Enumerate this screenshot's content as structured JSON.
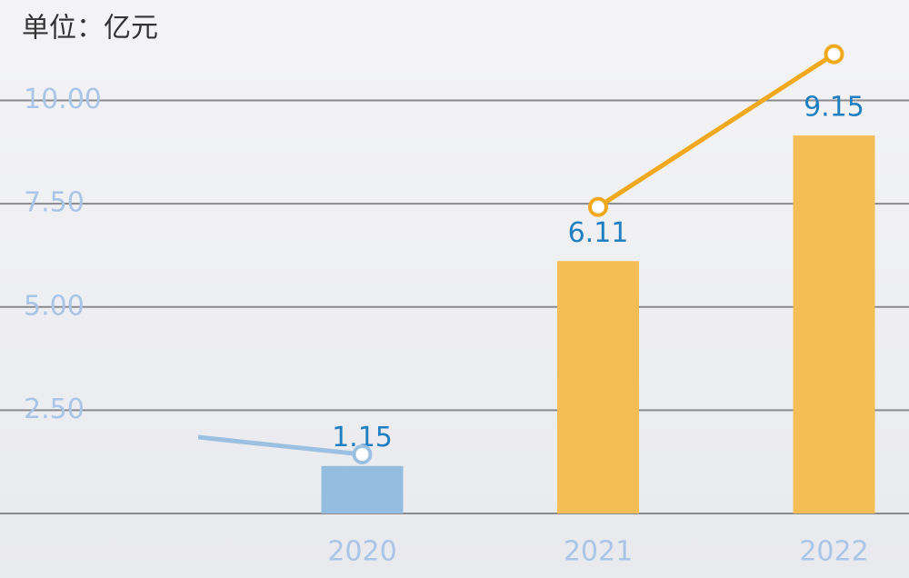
{
  "chart_data": {
    "type": "bar",
    "title": "单位：亿元",
    "categories": [
      null,
      "2020",
      "2021",
      "2022"
    ],
    "values": [
      null,
      1.15,
      6.11,
      9.15
    ],
    "colors": [
      "#95bde0",
      "#95bde0",
      "#f5bd55",
      "#f5bd55"
    ],
    "series": [
      {
        "values": [
          2.03,
          1.43,
          null,
          null
        ],
        "color": "#9cc0e2"
      },
      {
        "values": [
          null,
          null,
          7.42,
          11.12
        ],
        "color": "#f0a81c"
      }
    ],
    "ylim": [
      0,
      12.3
    ],
    "yticks": [
      {
        "value": 2.5,
        "label": "2.50"
      },
      {
        "value": 5,
        "label": "5.00"
      },
      {
        "value": 7.5,
        "label": "7.50"
      },
      {
        "value": 10,
        "label": "10.00"
      }
    ],
    "grid": true
  }
}
